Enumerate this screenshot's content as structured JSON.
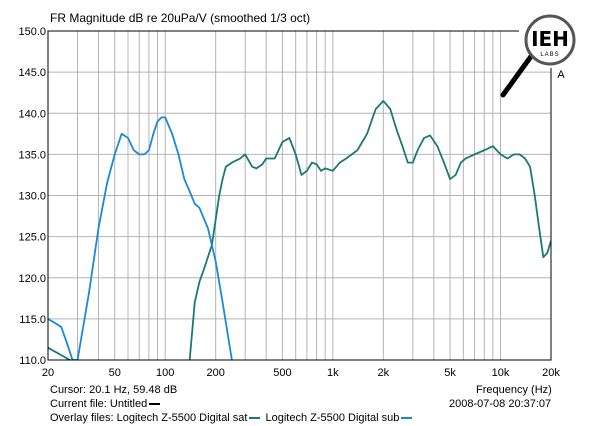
{
  "chart_data": {
    "type": "line",
    "title": "FR Magnitude dB re 20uPa/V (smoothed 1/3 oct)",
    "xlabel": "Frequency (Hz)",
    "xscale": "log",
    "xlim": [
      20,
      20000
    ],
    "ylim": [
      110,
      150
    ],
    "grid": true,
    "x_ticks": [
      20,
      30,
      40,
      50,
      60,
      70,
      80,
      90,
      100,
      200,
      300,
      400,
      500,
      600,
      700,
      800,
      900,
      1000,
      2000,
      3000,
      4000,
      5000,
      6000,
      7000,
      8000,
      9000,
      10000,
      20000
    ],
    "x_tick_labels": [
      {
        "value": 20,
        "label": "20"
      },
      {
        "value": 50,
        "label": "50"
      },
      {
        "value": 100,
        "label": "100"
      },
      {
        "value": 200,
        "label": "200"
      },
      {
        "value": 500,
        "label": "500"
      },
      {
        "value": 1000,
        "label": "1k"
      },
      {
        "value": 2000,
        "label": "2k"
      },
      {
        "value": 5000,
        "label": "5k"
      },
      {
        "value": 10000,
        "label": "10k"
      },
      {
        "value": 20000,
        "label": "20k"
      }
    ],
    "y_ticks": [
      110.0,
      115.0,
      120.0,
      125.0,
      130.0,
      135.0,
      140.0,
      145.0,
      150.0
    ],
    "y_tick_labels": [
      "110.0",
      "115.0",
      "120.0",
      "125.0",
      "130.0",
      "135.0",
      "140.0",
      "145.0",
      "150.0"
    ],
    "series": [
      {
        "name": "Logitech Z-5500 Digital sat",
        "color": "#1a7a73",
        "x": [
          20,
          27,
          28,
          30,
          33,
          36,
          40,
          45,
          50,
          55,
          60,
          70,
          80,
          90,
          100,
          110,
          120,
          130,
          140,
          150,
          160,
          170,
          190,
          210,
          220,
          230,
          250,
          280,
          300,
          330,
          350,
          380,
          400,
          450,
          500,
          550,
          600,
          650,
          700,
          750,
          800,
          850,
          900,
          1000,
          1100,
          1200,
          1400,
          1600,
          1800,
          2000,
          2200,
          2400,
          2600,
          2800,
          3000,
          3200,
          3500,
          3800,
          4200,
          4600,
          5000,
          5400,
          5800,
          6200,
          7000,
          8000,
          9000,
          10000,
          11000,
          12000,
          13000,
          14000,
          15000,
          16000,
          17000,
          18000,
          19000,
          20000
        ],
        "y": [
          111.5,
          110.0,
          109.0,
          108.0,
          108.0,
          108.0,
          108.0,
          108.0,
          108.0,
          108.0,
          108.0,
          108.0,
          108.0,
          108.0,
          108.0,
          108.0,
          108.0,
          108.5,
          110.0,
          117.0,
          119.5,
          121.0,
          124.0,
          130.0,
          132.0,
          133.5,
          134.0,
          134.5,
          135.0,
          133.5,
          133.3,
          133.8,
          134.5,
          134.5,
          136.5,
          137.0,
          135.0,
          132.5,
          133.0,
          134.0,
          133.8,
          133.0,
          133.3,
          133.0,
          134.0,
          134.5,
          135.5,
          137.5,
          140.5,
          141.5,
          140.5,
          138.0,
          136.0,
          134.0,
          134.0,
          135.5,
          137.0,
          137.3,
          136.0,
          134.0,
          132.0,
          132.5,
          134.0,
          134.5,
          135.0,
          135.5,
          136.0,
          135.0,
          134.5,
          135.0,
          135.0,
          134.5,
          133.5,
          130.0,
          126.0,
          122.5,
          123.0,
          124.5
        ]
      },
      {
        "name": "Logitech Z-5500 Digital sub",
        "color": "#1e88d8",
        "x": [
          20,
          22,
          24,
          26,
          28,
          30,
          35,
          40,
          45,
          50,
          55,
          60,
          65,
          70,
          75,
          80,
          85,
          90,
          95,
          100,
          110,
          120,
          130,
          140,
          150,
          160,
          180,
          200,
          220,
          250
        ],
        "y": [
          115.0,
          114.5,
          114.0,
          112.0,
          110.0,
          110.0,
          118.0,
          126.0,
          131.5,
          135.0,
          137.5,
          137.0,
          135.5,
          135.0,
          135.0,
          135.5,
          137.5,
          139.0,
          139.5,
          139.5,
          137.5,
          135.0,
          132.0,
          130.5,
          129.0,
          128.5,
          126.0,
          122.0,
          117.0,
          110.0
        ]
      }
    ]
  },
  "cursor_text": "Cursor: 20.1 Hz, 59.48 dB",
  "freq_label": "Frequency (Hz)",
  "current_file_label": "Current file: Untitled",
  "timestamp": "2008-07-08  20:37:07",
  "overlay_label": "Overlay files: Logitech Z-5500 Digital sat",
  "overlay_second": "Logitech Z-5500 Digital sub",
  "logo": {
    "text": "IEH",
    "subtext": "LABS",
    "channel": "A"
  },
  "colors": {
    "grid": "#b4b4b4",
    "frame": "#000000",
    "sat": "#1a7a73",
    "sub": "#1e88d8"
  }
}
